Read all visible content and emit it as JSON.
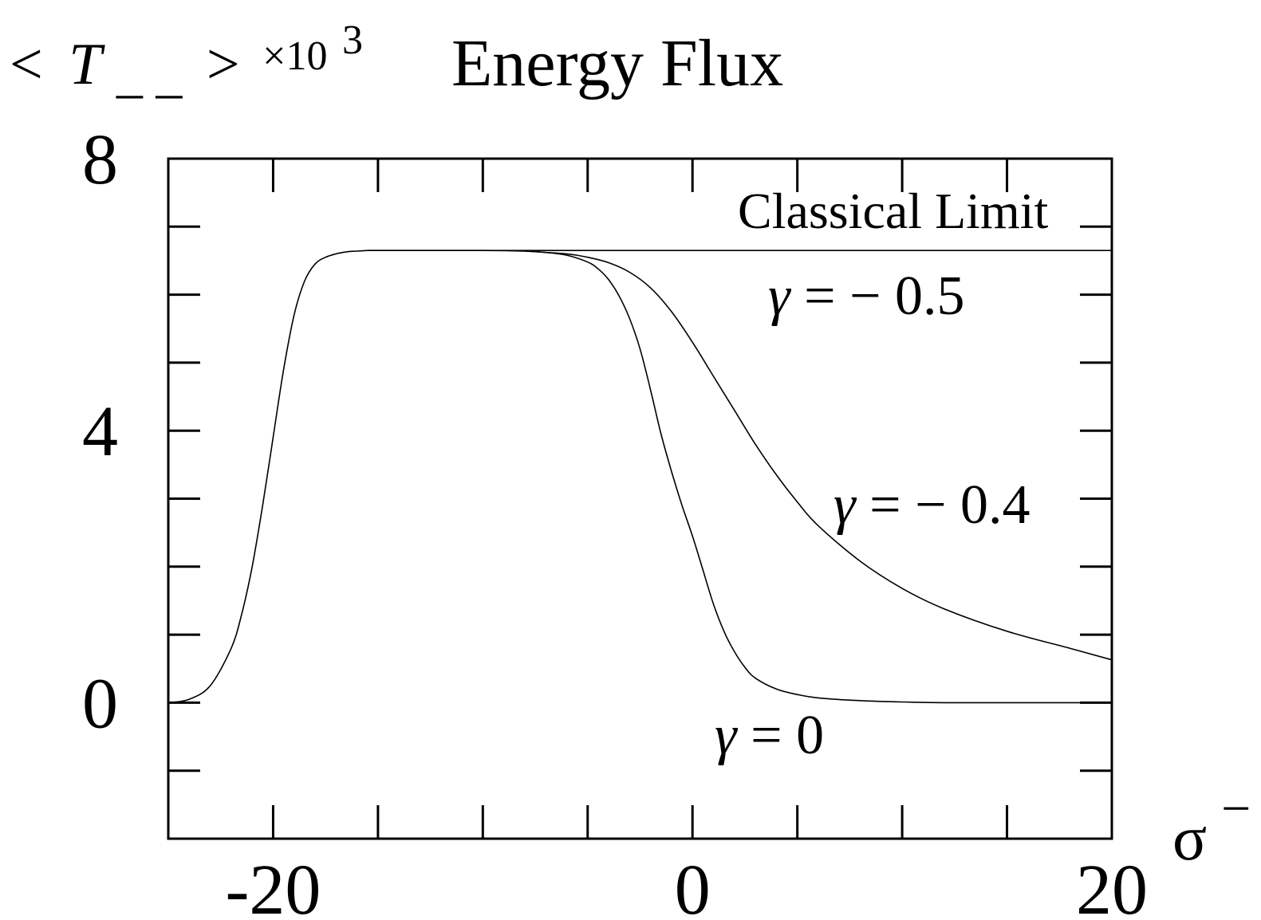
{
  "chart_data": {
    "type": "line",
    "title": "Energy Flux",
    "ylabel": {
      "lt": "<",
      "T": "T",
      "sub": "_ _",
      "gt": ">",
      "times": "×10",
      "exp": "3"
    },
    "xlabel": {
      "sigma": "σ",
      "sup": "−"
    },
    "xlim": [
      -25,
      20
    ],
    "ylim": [
      -2,
      8
    ],
    "x_ticks_major": [
      -20,
      0,
      20
    ],
    "x_tick_labels": [
      "-20",
      "0",
      "20"
    ],
    "x_ticks_minor": [
      -15,
      -10,
      -5,
      5,
      10,
      15
    ],
    "y_ticks_major": [
      0,
      4,
      8
    ],
    "y_tick_labels": [
      "0",
      "4",
      "8"
    ],
    "y_ticks_minor": [
      -1,
      1,
      2,
      3,
      5,
      6,
      7
    ],
    "grid": false,
    "classical_limit": {
      "label": "Classical Limit",
      "y": 6.65,
      "x_from": -15.5,
      "x_to": 20
    },
    "annotations": [
      {
        "text": "γ = − 0.5",
        "x": 8.3,
        "y": 5.9
      },
      {
        "text": "γ = − 0.4",
        "x": 11.5,
        "y": 2.8
      },
      {
        "text": "γ = 0",
        "x": 5,
        "y": -0.9
      }
    ],
    "series": [
      {
        "key": "rise",
        "x": [
          -25,
          -24,
          -23,
          -22,
          -21.5,
          -21,
          -20.5,
          -20,
          -19.5,
          -19,
          -18.5,
          -18,
          -17.5,
          -17,
          -16.5,
          -16,
          -15.5
        ],
        "y": [
          0.0,
          0.05,
          0.25,
          0.8,
          1.3,
          2.0,
          2.9,
          3.9,
          4.9,
          5.7,
          6.2,
          6.45,
          6.55,
          6.6,
          6.63,
          6.64,
          6.65
        ]
      },
      {
        "key": "gamma_0",
        "x": [
          -15.5,
          -10,
          -8,
          -7,
          -6,
          -5,
          -4.5,
          -4,
          -3.5,
          -3,
          -2.5,
          -2,
          -1.5,
          -1,
          -0.5,
          0,
          0.5,
          1,
          1.5,
          2,
          2.5,
          3,
          4,
          5,
          6,
          8,
          10,
          12,
          15,
          18,
          20
        ],
        "y": [
          6.65,
          6.65,
          6.64,
          6.62,
          6.58,
          6.48,
          6.38,
          6.22,
          5.98,
          5.65,
          5.2,
          4.6,
          3.95,
          3.4,
          2.9,
          2.45,
          1.95,
          1.45,
          1.05,
          0.75,
          0.52,
          0.36,
          0.2,
          0.12,
          0.07,
          0.03,
          0.01,
          0.0,
          0.0,
          0.0,
          0.0
        ]
      },
      {
        "key": "gamma_-0.4",
        "x": [
          -8,
          -6,
          -5,
          -4,
          -3,
          -2,
          -1,
          0,
          1,
          2,
          3,
          4,
          5,
          6,
          8,
          10,
          12,
          15,
          18,
          20
        ],
        "y": [
          6.64,
          6.6,
          6.55,
          6.47,
          6.33,
          6.1,
          5.75,
          5.3,
          4.8,
          4.3,
          3.8,
          3.35,
          2.95,
          2.6,
          2.08,
          1.68,
          1.38,
          1.05,
          0.8,
          0.63
        ]
      }
    ]
  }
}
